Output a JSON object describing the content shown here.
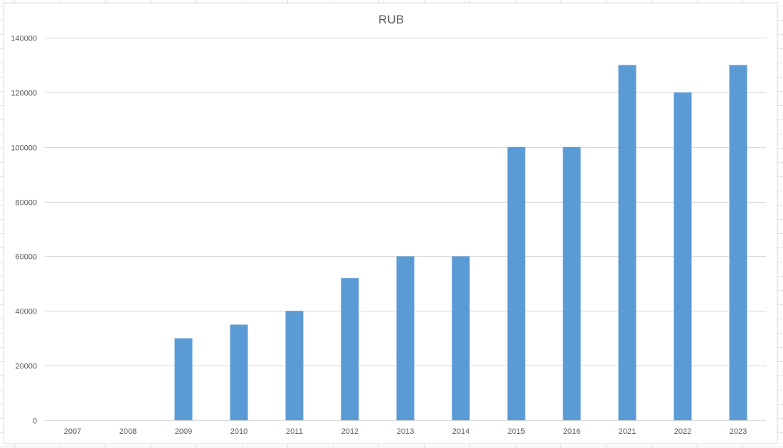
{
  "chart_data": {
    "type": "bar",
    "title": "RUB",
    "xlabel": "",
    "ylabel": "",
    "categories": [
      "2007",
      "2008",
      "2009",
      "2010",
      "2011",
      "2012",
      "2013",
      "2014",
      "2015",
      "2016",
      "2021",
      "2022",
      "2023"
    ],
    "values": [
      0,
      0,
      30000,
      35000,
      40000,
      52000,
      60000,
      60000,
      100000,
      100000,
      130000,
      120000,
      130000
    ],
    "ylim": [
      0,
      140000
    ],
    "yticks": [
      "0",
      "20000",
      "40000",
      "60000",
      "80000",
      "100000",
      "120000",
      "140000"
    ],
    "grid": true,
    "legend": "none",
    "bar_color": "#5B9BD5",
    "gridline_color": "#D9D9D9",
    "sheet_gridline_color": "#E2E2E2"
  }
}
